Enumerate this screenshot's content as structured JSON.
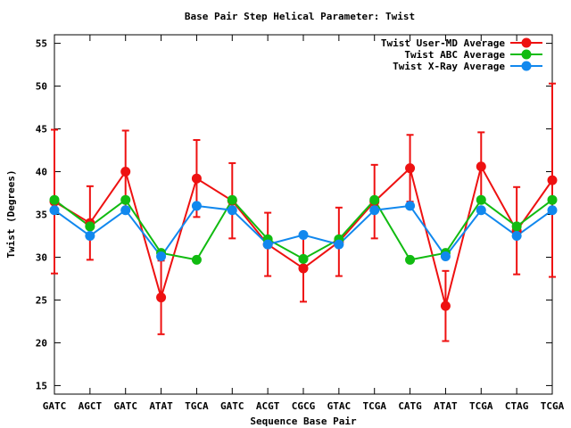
{
  "chart_data": {
    "type": "line",
    "title": "Base Pair Step Helical Parameter: Twist",
    "xlabel": "Sequence Base Pair",
    "ylabel": "Twist (Degrees)",
    "ylim": [
      14,
      56
    ],
    "yticks": [
      15,
      20,
      25,
      30,
      35,
      40,
      45,
      50,
      55
    ],
    "grid": false,
    "legend_position": "top-right",
    "categories": [
      "GATC",
      "AGCT",
      "GATC",
      "ATAT",
      "TGCA",
      "GATC",
      "ACGT",
      "CGCG",
      "GTAC",
      "TCGA",
      "CATG",
      "ATAT",
      "TCGA",
      "CTAG",
      "TCGA"
    ],
    "series": [
      {
        "name": "Twist User-MD Average",
        "color": "#ee1111",
        "values": [
          36.5,
          34.0,
          40.0,
          25.3,
          39.2,
          36.6,
          31.5,
          28.7,
          31.8,
          36.5,
          40.4,
          24.3,
          40.6,
          33.1,
          39.0
        ],
        "errors": [
          8.4,
          4.3,
          4.8,
          4.3,
          4.5,
          4.4,
          3.7,
          3.9,
          4.0,
          4.3,
          3.9,
          4.1,
          4.0,
          5.1,
          11.3
        ]
      },
      {
        "name": "Twist ABC Average",
        "color": "#11bb11",
        "values": [
          36.7,
          33.6,
          36.7,
          30.5,
          29.7,
          36.7,
          32.1,
          29.8,
          32.1,
          36.7,
          29.7,
          30.5,
          36.7,
          33.6,
          36.7
        ]
      },
      {
        "name": "Twist X-Ray Average",
        "color": "#1188ee",
        "values": [
          35.5,
          32.5,
          35.5,
          30.1,
          36.0,
          35.5,
          31.5,
          32.6,
          31.5,
          35.5,
          36.0,
          30.1,
          35.5,
          32.5,
          35.5
        ]
      }
    ]
  }
}
